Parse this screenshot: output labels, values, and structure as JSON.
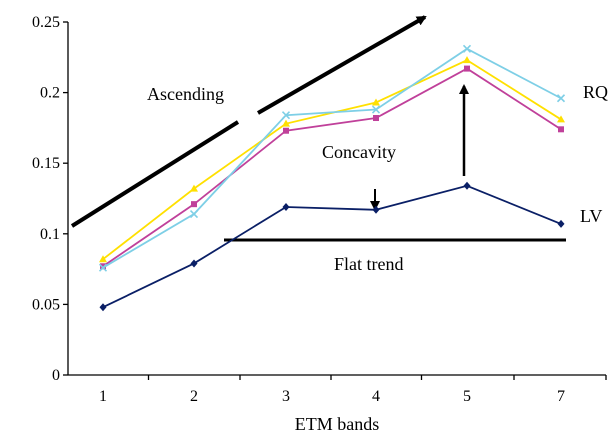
{
  "chart_data": {
    "type": "line",
    "categories": [
      "1",
      "2",
      "3",
      "4",
      "5",
      "7"
    ],
    "xlabel": "ETM bands",
    "ylabel": "",
    "ylim": [
      0,
      0.25
    ],
    "yticks": [
      "0",
      "0.05",
      "0.1",
      "0.15",
      "0.2",
      "0.25"
    ],
    "grid": false,
    "series": [
      {
        "label_key": "yellow",
        "values": [
          0.082,
          0.132,
          0.178,
          0.193,
          0.223,
          0.181
        ],
        "color": "#ffe000",
        "marker": "triangle"
      },
      {
        "label_key": "magenta",
        "values": [
          0.077,
          0.121,
          0.173,
          0.182,
          0.217,
          0.174
        ],
        "color": "#c0409a",
        "marker": "square"
      },
      {
        "label_key": "cyan",
        "values": [
          0.076,
          0.114,
          0.184,
          0.188,
          0.231,
          0.196
        ],
        "color": "#7ecfe6",
        "marker": "x"
      },
      {
        "label_key": "navy",
        "values": [
          0.048,
          0.079,
          0.119,
          0.117,
          0.134,
          0.107
        ],
        "color": "#0a1f66",
        "marker": "diamond"
      }
    ],
    "annotations": {
      "ascending": "Ascending",
      "concavity": "Concavity",
      "flat_trend": "Flat trend",
      "rq": "RQ",
      "lv": "LV"
    }
  }
}
